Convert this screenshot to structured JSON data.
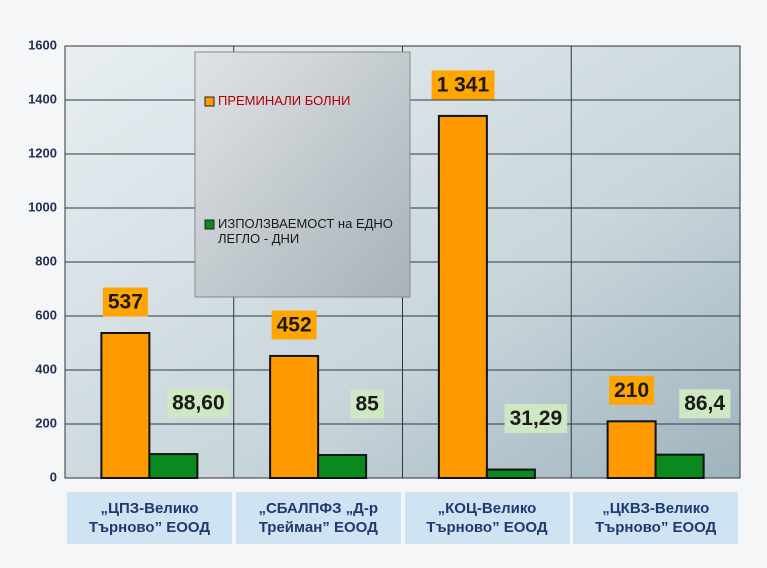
{
  "chart_data": {
    "type": "bar",
    "categories": [
      "„ЦПЗ-Велико Търново” ЕООД",
      "„СБАЛПФЗ „Д-р Трейман” ЕООД",
      "„КОЦ-Велико Търново” ЕООД",
      "„ЦКВЗ-Велико Търново” ЕООД"
    ],
    "series": [
      {
        "name": "ПРЕМИНАЛИ БОЛНИ",
        "color": "#ff9900",
        "values": [
          537,
          452,
          1341,
          210
        ],
        "value_labels": [
          "537",
          "452",
          "1 341",
          "210"
        ]
      },
      {
        "name": "ИЗПОЛЗВАЕМОСТ на ЕДНО ЛЕГЛО - ДНИ",
        "color": "#0a8a1e",
        "values": [
          88.6,
          85,
          31.29,
          86.4
        ],
        "value_labels": [
          "88,60",
          "85",
          "31,29",
          "86,4"
        ]
      }
    ],
    "ylim": [
      0,
      1600
    ],
    "yticks": [
      0,
      200,
      400,
      600,
      800,
      1000,
      1200,
      1400,
      1600
    ],
    "grid": true
  }
}
